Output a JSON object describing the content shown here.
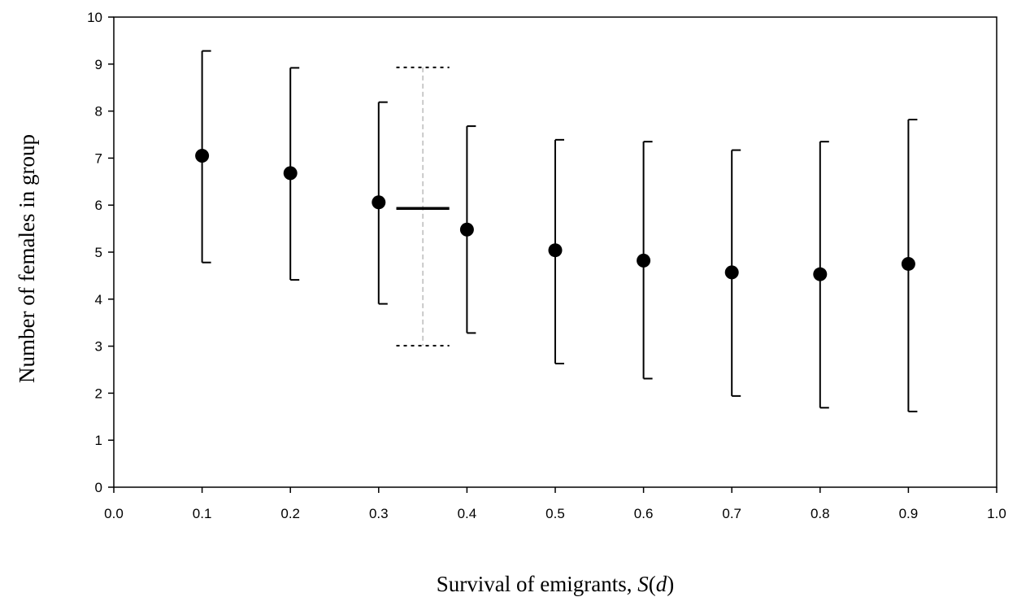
{
  "chart_data": {
    "type": "scatter",
    "xlabel": "Survival of emigrants, S(d)",
    "xlabel_parts": {
      "prefix": "Survival of emigrants, ",
      "italic_s": "S",
      "open": "(",
      "italic_d": "d",
      "close": ")"
    },
    "ylabel": "Number of females in group",
    "xlim": [
      0.0,
      1.0
    ],
    "ylim": [
      0,
      10
    ],
    "x_ticks": [
      "0.0",
      "0.1",
      "0.2",
      "0.3",
      "0.4",
      "0.5",
      "0.6",
      "0.7",
      "0.8",
      "0.9",
      "1.0"
    ],
    "y_ticks": [
      "0",
      "1",
      "2",
      "3",
      "4",
      "5",
      "6",
      "7",
      "8",
      "9",
      "10"
    ],
    "grid": false,
    "legend": "none",
    "series": [
      {
        "marker": "filled-circle",
        "color": "#000000",
        "points": [
          {
            "x": 0.1,
            "y": 7.05,
            "low": 4.78,
            "high": 9.28
          },
          {
            "x": 0.2,
            "y": 6.68,
            "low": 4.41,
            "high": 8.92
          },
          {
            "x": 0.3,
            "y": 6.06,
            "low": 3.9,
            "high": 8.19
          },
          {
            "x": 0.4,
            "y": 5.48,
            "low": 3.28,
            "high": 7.68
          },
          {
            "x": 0.5,
            "y": 5.04,
            "low": 2.63,
            "high": 7.39
          },
          {
            "x": 0.6,
            "y": 4.82,
            "low": 2.31,
            "high": 7.35
          },
          {
            "x": 0.7,
            "y": 4.57,
            "low": 1.94,
            "high": 7.17
          },
          {
            "x": 0.8,
            "y": 4.53,
            "low": 1.69,
            "high": 7.35
          },
          {
            "x": 0.9,
            "y": 4.75,
            "low": 1.61,
            "high": 7.82
          }
        ]
      }
    ],
    "reference": {
      "x": 0.35,
      "mean": 5.93,
      "low": 3.01,
      "high": 8.93,
      "bar_x_range": [
        0.32,
        0.38
      ],
      "style": "solid mean bar, dashed range"
    }
  }
}
